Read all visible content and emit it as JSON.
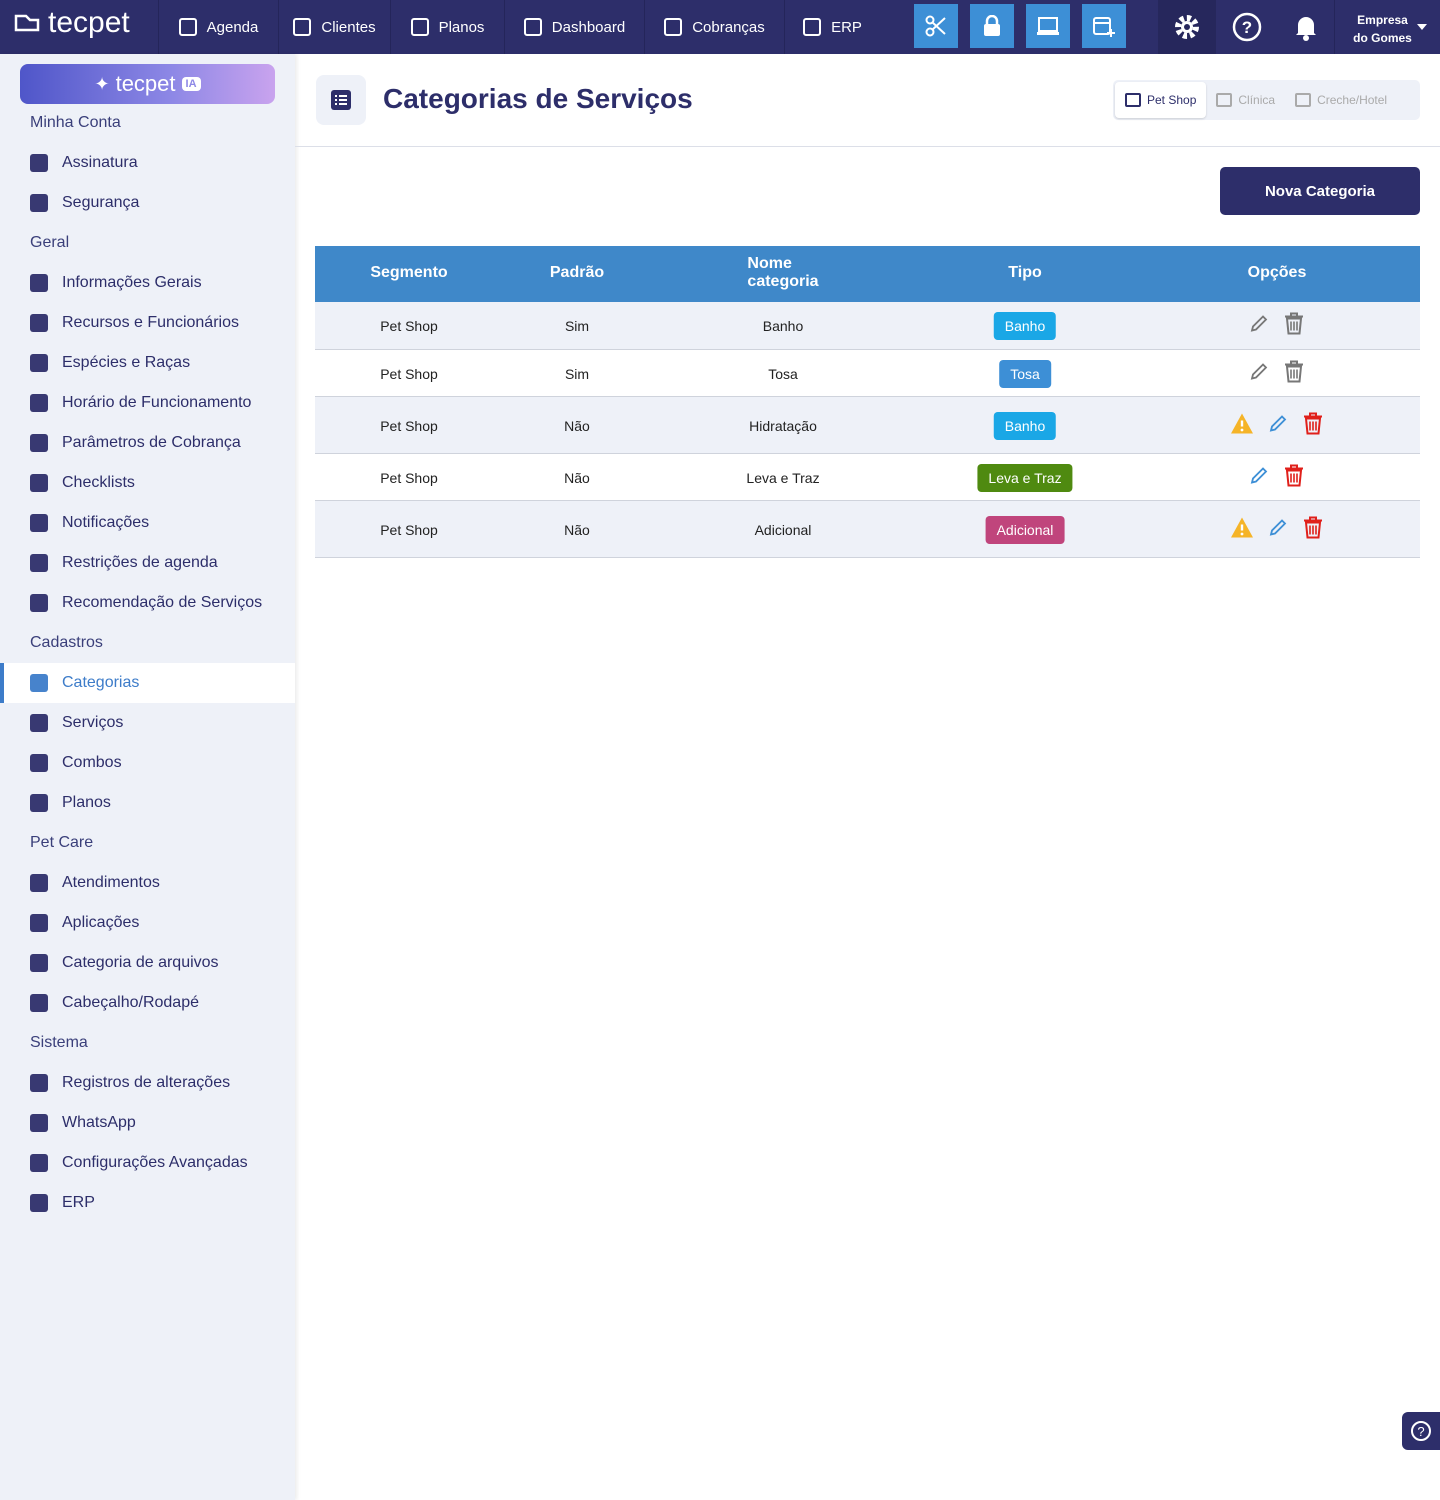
{
  "topbar": {
    "logo": "tecpet",
    "nav": [
      "Agenda",
      "Clientes",
      "Planos",
      "Dashboard",
      "Cobranças",
      "ERP"
    ],
    "company": [
      "Empresa",
      "do Gomes"
    ]
  },
  "sidebar": {
    "ai_button": "tecpet",
    "ai_badge": "IA",
    "sections": [
      {
        "title": "Minha Conta",
        "items": [
          "Assinatura",
          "Segurança"
        ]
      },
      {
        "title": "Geral",
        "items": [
          "Informações Gerais",
          "Recursos e Funcionários",
          "Espécies e Raças",
          "Horário de Funcionamento",
          "Parâmetros de Cobrança",
          "Checklists",
          "Notificações",
          "Restrições de agenda",
          "Recomendação de Serviços"
        ]
      },
      {
        "title": "Cadastros",
        "items": [
          "Categorias",
          "Serviços",
          "Combos",
          "Planos"
        ]
      },
      {
        "title": "Pet Care",
        "items": [
          "Atendimentos",
          "Aplicações",
          "Categoria de arquivos",
          "Cabeçalho/Rodapé"
        ]
      },
      {
        "title": "Sistema",
        "items": [
          "Registros de alterações",
          "WhatsApp",
          "Configurações Avançadas",
          "ERP"
        ]
      }
    ]
  },
  "header": {
    "title": "Categorias de Serviços",
    "segments": [
      "Pet Shop",
      "Clínica",
      "Creche/Hotel"
    ]
  },
  "new_button": "Nova Categoria",
  "table": {
    "columns": [
      "Segmento",
      "Padrão",
      "Nome categoria",
      "Tipo",
      "Opções"
    ],
    "rows": [
      {
        "segment": "Pet Shop",
        "default": "Sim",
        "name": "Banho",
        "type": "Banho",
        "type_color": "#1aa7e6"
      },
      {
        "segment": "Pet Shop",
        "default": "Sim",
        "name": "Tosa",
        "type": "Tosa",
        "type_color": "#3d8fd6"
      },
      {
        "segment": "Pet Shop",
        "default": "Não",
        "name": "Hidratação",
        "type": "Banho",
        "type_color": "#1aa7e6"
      },
      {
        "segment": "Pet Shop",
        "default": "Não",
        "name": "Leva e Traz",
        "type": "Leva e Traz",
        "type_color": "#4f8a10"
      },
      {
        "segment": "Pet Shop",
        "default": "Não",
        "name": "Adicional",
        "type": "Adicional",
        "type_color": "#c0457c"
      }
    ]
  }
}
